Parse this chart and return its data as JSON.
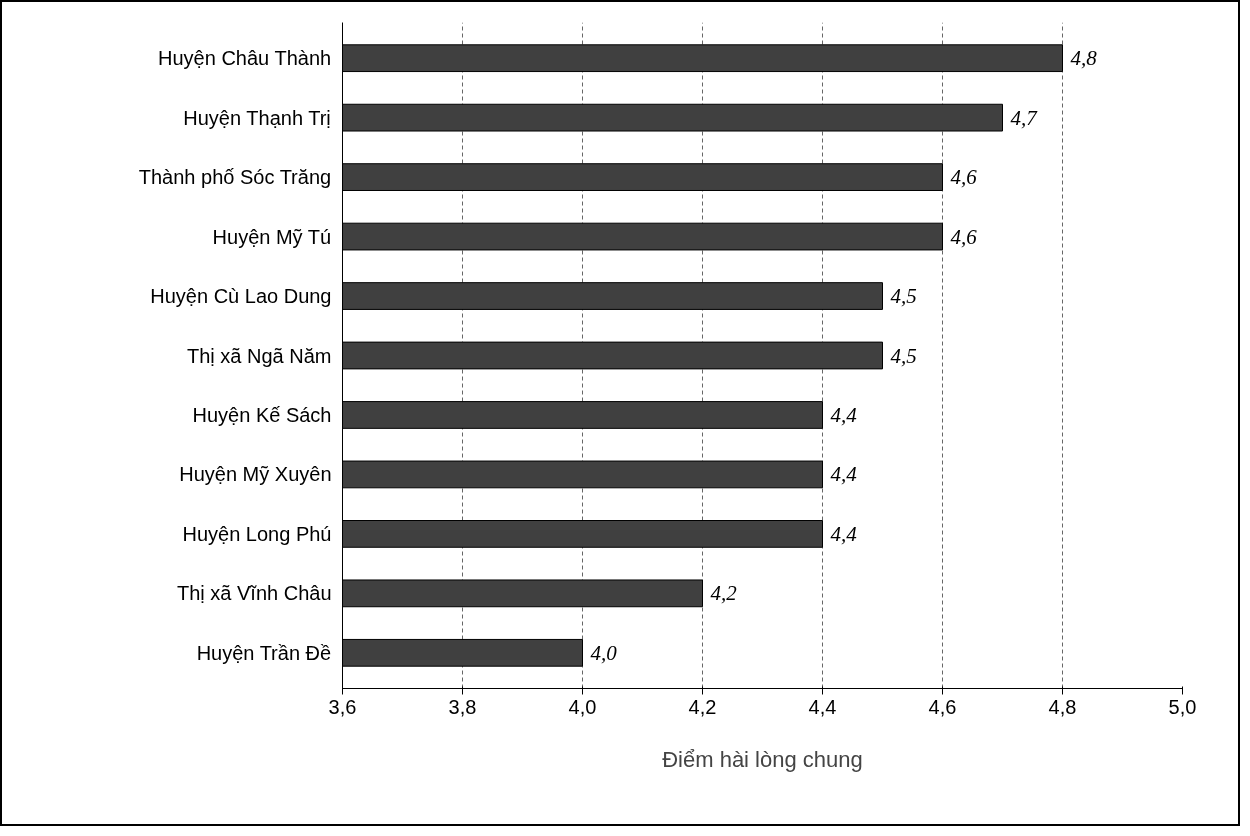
{
  "chart_data": {
    "type": "bar",
    "orientation": "horizontal",
    "xlabel": "Điểm hài lòng chung",
    "categories": [
      "Huyện Châu Thành",
      "Huyện Thạnh Trị",
      "Thành phố Sóc Trăng",
      "Huyện Mỹ Tú",
      "Huyện Cù Lao Dung",
      "Thị xã Ngã Năm",
      "Huyện Kế Sách",
      "Huyện Mỹ Xuyên",
      "Huyện Long Phú",
      "Thị xã Vĩnh Châu",
      "Huyện Trần Đề"
    ],
    "values": [
      4.8,
      4.7,
      4.6,
      4.6,
      4.5,
      4.5,
      4.4,
      4.4,
      4.4,
      4.2,
      4.0
    ],
    "value_labels": [
      "4,8",
      "4,7",
      "4,6",
      "4,6",
      "4,5",
      "4,5",
      "4,4",
      "4,4",
      "4,4",
      "4,2",
      "4,0"
    ],
    "color": "#404040",
    "xlim": [
      3.6,
      5.0
    ],
    "xticks": [
      {
        "value": 3.6,
        "label": "3,6"
      },
      {
        "value": 3.8,
        "label": "3,8"
      },
      {
        "value": 4.0,
        "label": "4,0"
      },
      {
        "value": 4.2,
        "label": "4,2"
      },
      {
        "value": 4.4,
        "label": "4,4"
      },
      {
        "value": 4.6,
        "label": "4,6"
      },
      {
        "value": 4.8,
        "label": "4,8"
      },
      {
        "value": 5.0,
        "label": "5,0"
      }
    ],
    "grid": "x"
  }
}
